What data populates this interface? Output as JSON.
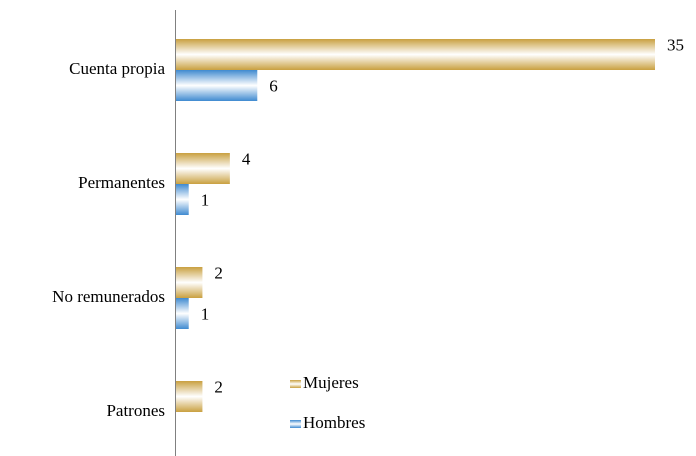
{
  "chart_data": {
    "type": "hbar",
    "categories": [
      "Cuenta propia",
      "Permanentes",
      "No remunerados",
      "Patrones"
    ],
    "series": [
      {
        "name": "Mujeres",
        "color": "#c9a040",
        "values": [
          35,
          4,
          2,
          2
        ]
      },
      {
        "name": "Hombres",
        "color": "#3f8ad0",
        "values": [
          6,
          1,
          1,
          null
        ]
      }
    ],
    "legend": "bottom-center"
  }
}
